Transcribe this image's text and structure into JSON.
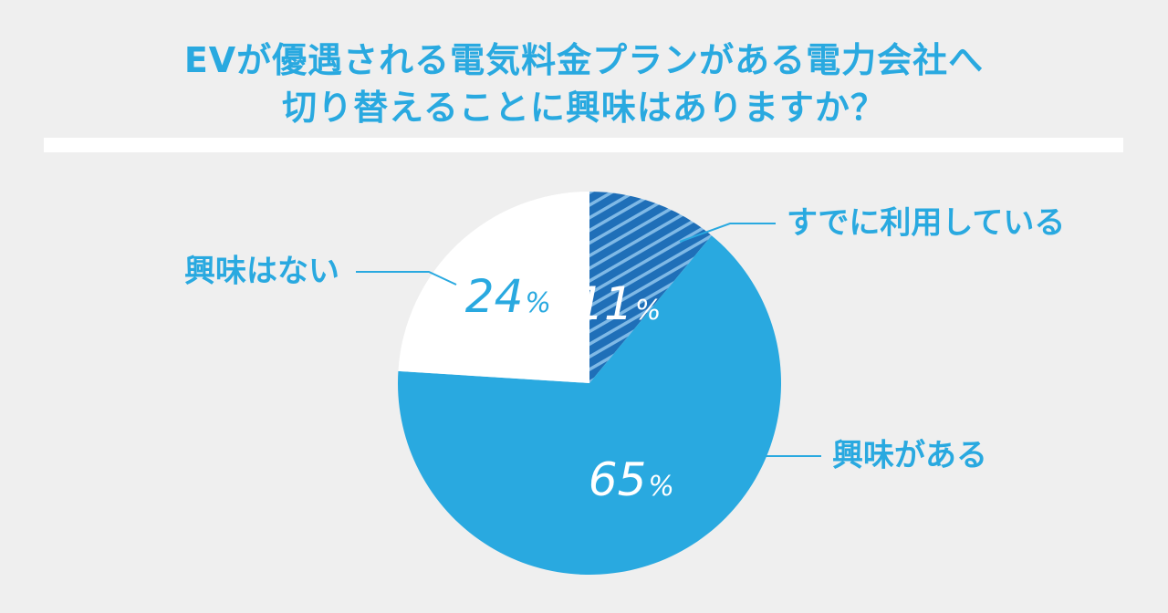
{
  "title": {
    "line1": "EVが優遇される電気料金プランがある電力会社へ",
    "line2": "切り替えることに興味はありますか？"
  },
  "colors": {
    "main_blue": "#29a9e0",
    "dark_blue": "#1f6fb8",
    "stripe_light": "#7fb9e6",
    "white": "#ffffff",
    "background": "#efefef"
  },
  "chart_data": {
    "type": "pie",
    "start": "12 o'clock",
    "direction": "clockwise",
    "slices": [
      {
        "label": "すでに利用している",
        "value": 11,
        "unit": "%",
        "fill": "striped-dark-blue",
        "text_color": "#ffffff"
      },
      {
        "label": "興味がある",
        "value": 65,
        "unit": "%",
        "fill": "#29a9e0",
        "text_color": "#ffffff"
      },
      {
        "label": "興味はない",
        "value": 24,
        "unit": "%",
        "fill": "#ffffff",
        "text_color": "#29a9e0"
      }
    ]
  }
}
